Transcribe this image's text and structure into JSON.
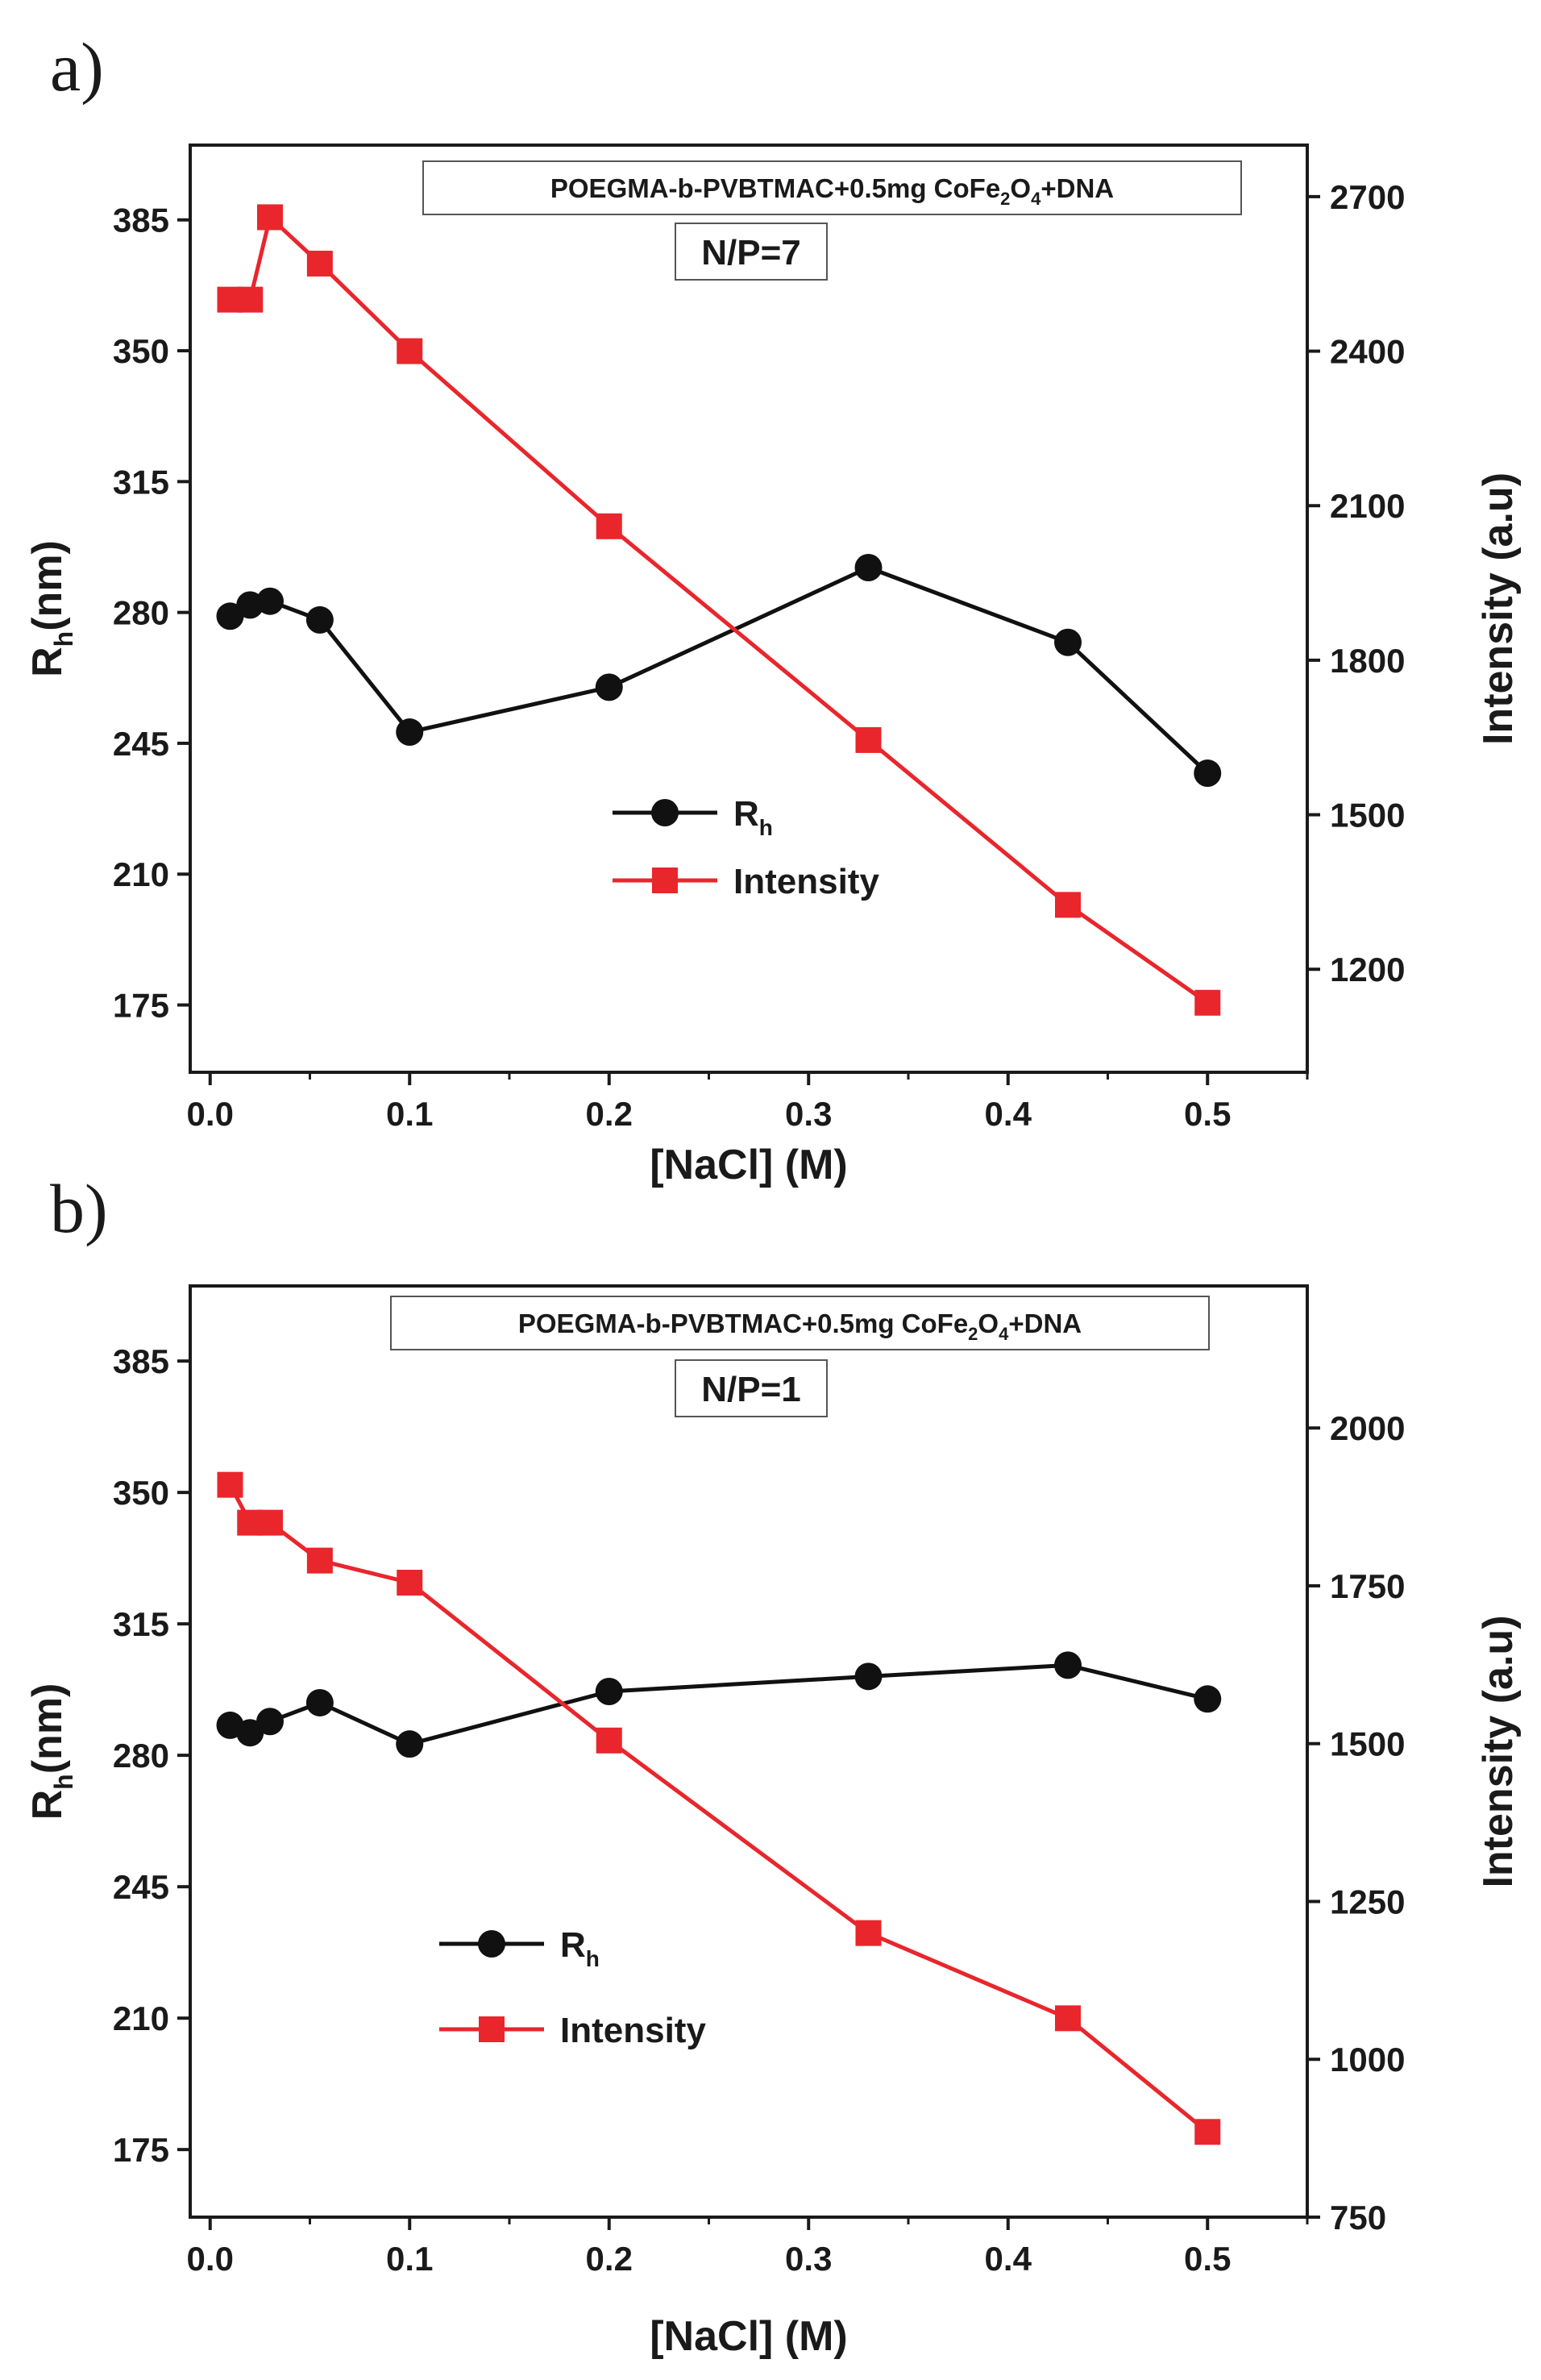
{
  "chart_data": [
    {
      "panel_label": "a)",
      "type": "line",
      "title_box": {
        "main": "POEGMA-b-PVBTMAC+0.5mg CoFe",
        "sub1": "2",
        "mid": "O",
        "sub2": "4",
        "tail": "+DNA"
      },
      "np_label": "N/P=7",
      "xlabel": "[NaCl] (M)",
      "ylabel_left": {
        "main": "R",
        "sub": "h",
        "tail": "(nm)"
      },
      "ylabel_right": "Intensity (a.u)",
      "xlim": [
        -0.01,
        0.55
      ],
      "ylim_left": [
        157,
        405
      ],
      "ylim_right": [
        1000,
        2800
      ],
      "xticks": [
        0.0,
        0.1,
        0.2,
        0.3,
        0.4,
        0.5
      ],
      "xtick_labels": [
        "0.0",
        "0.1",
        "0.2",
        "0.3",
        "0.4",
        "0.5"
      ],
      "yticks_left": [
        175,
        210,
        245,
        280,
        315,
        350,
        385
      ],
      "ytick_labels_left": [
        "175",
        "210",
        "245",
        "280",
        "315",
        "350",
        "385"
      ],
      "yticks_right": [
        1200,
        1500,
        1800,
        2100,
        2400,
        2700
      ],
      "ytick_labels_right": [
        "1200",
        "1500",
        "1800",
        "2100",
        "2400",
        "2700"
      ],
      "legend": {
        "position": "center",
        "rh_main": "R",
        "rh_sub": "h",
        "intensity": "Intensity"
      },
      "series": [
        {
          "name": "Rh",
          "axis": "left",
          "color": "#111111",
          "marker": "circle",
          "x": [
            0.01,
            0.02,
            0.03,
            0.055,
            0.1,
            0.2,
            0.33,
            0.43,
            0.5
          ],
          "y": [
            279,
            282,
            283,
            278,
            248,
            260,
            292,
            272,
            237
          ]
        },
        {
          "name": "Intensity",
          "axis": "right",
          "color": "#e8262c",
          "marker": "square",
          "x": [
            0.01,
            0.02,
            0.03,
            0.055,
            0.1,
            0.2,
            0.33,
            0.43,
            0.5
          ],
          "y": [
            2500,
            2500,
            2660,
            2570,
            2400,
            2060,
            1645,
            1325,
            1135
          ]
        }
      ]
    },
    {
      "panel_label": "b)",
      "type": "line",
      "title_box": {
        "main": "POEGMA-b-PVBTMAC+0.5mg CoFe",
        "sub1": "2",
        "mid": "O",
        "sub2": "4",
        "tail": "+DNA"
      },
      "np_label": "N/P=1",
      "xlabel": "[NaCl] (M)",
      "ylabel_left": {
        "main": "R",
        "sub": "h",
        "tail": "(nm)"
      },
      "ylabel_right": "Intensity (a.u)",
      "xlim": [
        -0.01,
        0.55
      ],
      "ylim_left": [
        157,
        405
      ],
      "ylim_right": [
        750,
        2225
      ],
      "xticks": [
        0.0,
        0.1,
        0.2,
        0.3,
        0.4,
        0.5
      ],
      "xtick_labels": [
        "0.0",
        "0.1",
        "0.2",
        "0.3",
        "0.4",
        "0.5"
      ],
      "yticks_left": [
        175,
        210,
        245,
        280,
        315,
        350,
        385
      ],
      "ytick_labels_left": [
        "175",
        "210",
        "245",
        "280",
        "315",
        "350",
        "385"
      ],
      "yticks_right": [
        750,
        1000,
        1250,
        1500,
        1750,
        2000
      ],
      "ytick_labels_right": [
        "750",
        "1000",
        "1250",
        "1500",
        "1750",
        "2000"
      ],
      "legend": {
        "position": "center-left",
        "rh_main": "R",
        "rh_sub": "h",
        "intensity": "Intensity"
      },
      "series": [
        {
          "name": "Rh",
          "axis": "left",
          "color": "#111111",
          "marker": "circle",
          "x": [
            0.01,
            0.02,
            0.03,
            0.055,
            0.1,
            0.2,
            0.33,
            0.43,
            0.5
          ],
          "y": [
            288,
            286,
            289,
            294,
            283,
            297,
            301,
            304,
            295
          ]
        },
        {
          "name": "Intensity",
          "axis": "right",
          "color": "#e8262c",
          "marker": "square",
          "x": [
            0.01,
            0.02,
            0.03,
            0.055,
            0.1,
            0.2,
            0.33,
            0.43,
            0.5
          ],
          "y": [
            1910,
            1850,
            1850,
            1790,
            1755,
            1505,
            1200,
            1065,
            885
          ]
        }
      ]
    }
  ]
}
